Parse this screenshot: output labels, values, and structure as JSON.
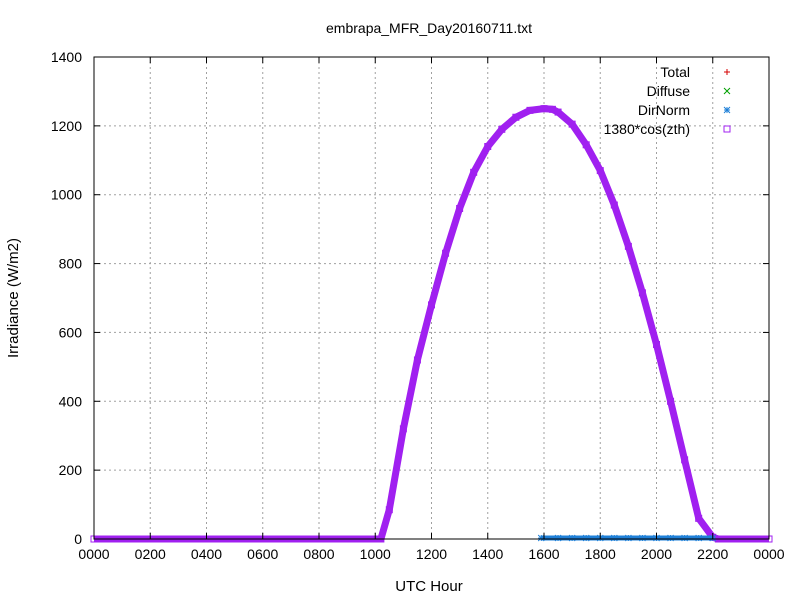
{
  "chart_data": {
    "type": "scatter",
    "title": "embrapa_MFR_Day20160711.txt",
    "xlabel": "UTC Hour",
    "ylabel": "Irradiance (W/m2)",
    "xlim": [
      0,
      24
    ],
    "ylim": [
      0,
      1400
    ],
    "grid": true,
    "legend_position": "top-right",
    "x_ticks": [
      {
        "value": 0,
        "label": "0000"
      },
      {
        "value": 2,
        "label": "0200"
      },
      {
        "value": 4,
        "label": "0400"
      },
      {
        "value": 6,
        "label": "0600"
      },
      {
        "value": 8,
        "label": "0800"
      },
      {
        "value": 10,
        "label": "1000"
      },
      {
        "value": 12,
        "label": "1200"
      },
      {
        "value": 14,
        "label": "1400"
      },
      {
        "value": 16,
        "label": "1600"
      },
      {
        "value": 18,
        "label": "1800"
      },
      {
        "value": 20,
        "label": "2000"
      },
      {
        "value": 22,
        "label": "2200"
      },
      {
        "value": 24,
        "label": "0000"
      }
    ],
    "y_ticks": [
      {
        "value": 0,
        "label": "0"
      },
      {
        "value": 200,
        "label": "200"
      },
      {
        "value": 400,
        "label": "400"
      },
      {
        "value": 600,
        "label": "600"
      },
      {
        "value": 800,
        "label": "800"
      },
      {
        "value": 1000,
        "label": "1000"
      },
      {
        "value": 1200,
        "label": "1200"
      },
      {
        "value": 1400,
        "label": "1400"
      }
    ],
    "series": [
      {
        "name": "Total",
        "marker": "plus",
        "color": "#d40000",
        "x": [],
        "y": []
      },
      {
        "name": "Diffuse",
        "marker": "cross",
        "color": "#00a000",
        "x": [],
        "y": []
      },
      {
        "name": "DirNorm",
        "marker": "star",
        "color": "#1f80d8",
        "x": [
          15.9,
          16.5,
          17,
          17.5,
          18,
          18.5,
          19,
          19.5,
          20,
          20.5,
          21,
          21.5,
          22.0
        ],
        "y": [
          0,
          0,
          0,
          0,
          0,
          0,
          0,
          0,
          0,
          0,
          0,
          0,
          0
        ]
      },
      {
        "name": "1380*cos(zth)",
        "marker": "square",
        "color": "#a020f0",
        "x": [
          0,
          1,
          2,
          3,
          4,
          5,
          6,
          7,
          8,
          9,
          10,
          10.2,
          10.5,
          11,
          11.5,
          12,
          12.5,
          13,
          13.5,
          14,
          14.5,
          15,
          15.5,
          16,
          16.3,
          16.5,
          17,
          17.5,
          18,
          18.5,
          19,
          19.5,
          20,
          20.5,
          21,
          21.5,
          22,
          22.2,
          22.5,
          23,
          24
        ],
        "y": [
          0,
          0,
          0,
          0,
          0,
          0,
          0,
          0,
          0,
          0,
          0,
          0,
          85,
          320,
          520,
          680,
          830,
          960,
          1065,
          1140,
          1190,
          1225,
          1245,
          1250,
          1248,
          1240,
          1205,
          1145,
          1070,
          970,
          850,
          715,
          565,
          400,
          230,
          60,
          5,
          0,
          0,
          0,
          0
        ]
      }
    ]
  }
}
